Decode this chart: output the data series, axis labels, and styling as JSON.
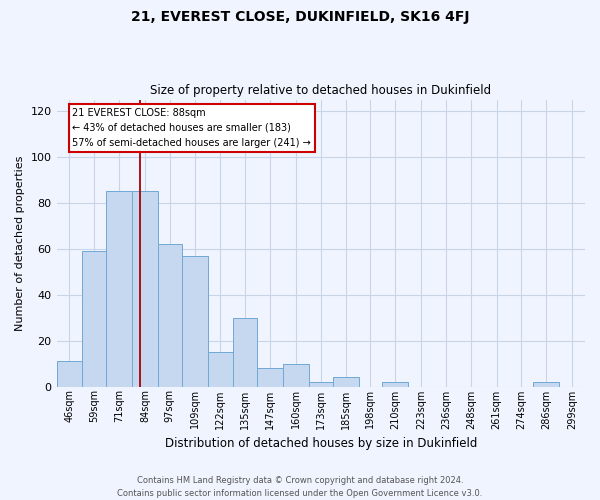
{
  "title": "21, EVEREST CLOSE, DUKINFIELD, SK16 4FJ",
  "subtitle": "Size of property relative to detached houses in Dukinfield",
  "xlabel": "Distribution of detached houses by size in Dukinfield",
  "ylabel": "Number of detached properties",
  "footer_line1": "Contains HM Land Registry data © Crown copyright and database right 2024.",
  "footer_line2": "Contains public sector information licensed under the Open Government Licence v3.0.",
  "bin_labels": [
    "46sqm",
    "59sqm",
    "71sqm",
    "84sqm",
    "97sqm",
    "109sqm",
    "122sqm",
    "135sqm",
    "147sqm",
    "160sqm",
    "173sqm",
    "185sqm",
    "198sqm",
    "210sqm",
    "223sqm",
    "236sqm",
    "248sqm",
    "261sqm",
    "274sqm",
    "286sqm",
    "299sqm"
  ],
  "bin_edges": [
    46,
    59,
    71,
    84,
    97,
    109,
    122,
    135,
    147,
    160,
    173,
    185,
    198,
    210,
    223,
    236,
    248,
    261,
    274,
    286,
    299,
    312
  ],
  "bar_heights": [
    11,
    59,
    85,
    85,
    62,
    57,
    15,
    30,
    8,
    10,
    2,
    4,
    0,
    2,
    0,
    0,
    0,
    0,
    0,
    2,
    0
  ],
  "bar_color": "#c5d8f0",
  "bar_edge_color": "#6fa8d6",
  "red_line_x": 88,
  "ylim": [
    0,
    125
  ],
  "yticks": [
    0,
    20,
    40,
    60,
    80,
    100,
    120
  ],
  "annotation_title": "21 EVEREST CLOSE: 88sqm",
  "annotation_line2": "← 43% of detached houses are smaller (183)",
  "annotation_line3": "57% of semi-detached houses are larger (241) →",
  "annotation_box_color": "#ffffff",
  "annotation_border_color": "#cc0000",
  "background_color": "#f0f4ff",
  "grid_color": "#c8d4e8",
  "title_fontsize": 10,
  "subtitle_fontsize": 8.5
}
